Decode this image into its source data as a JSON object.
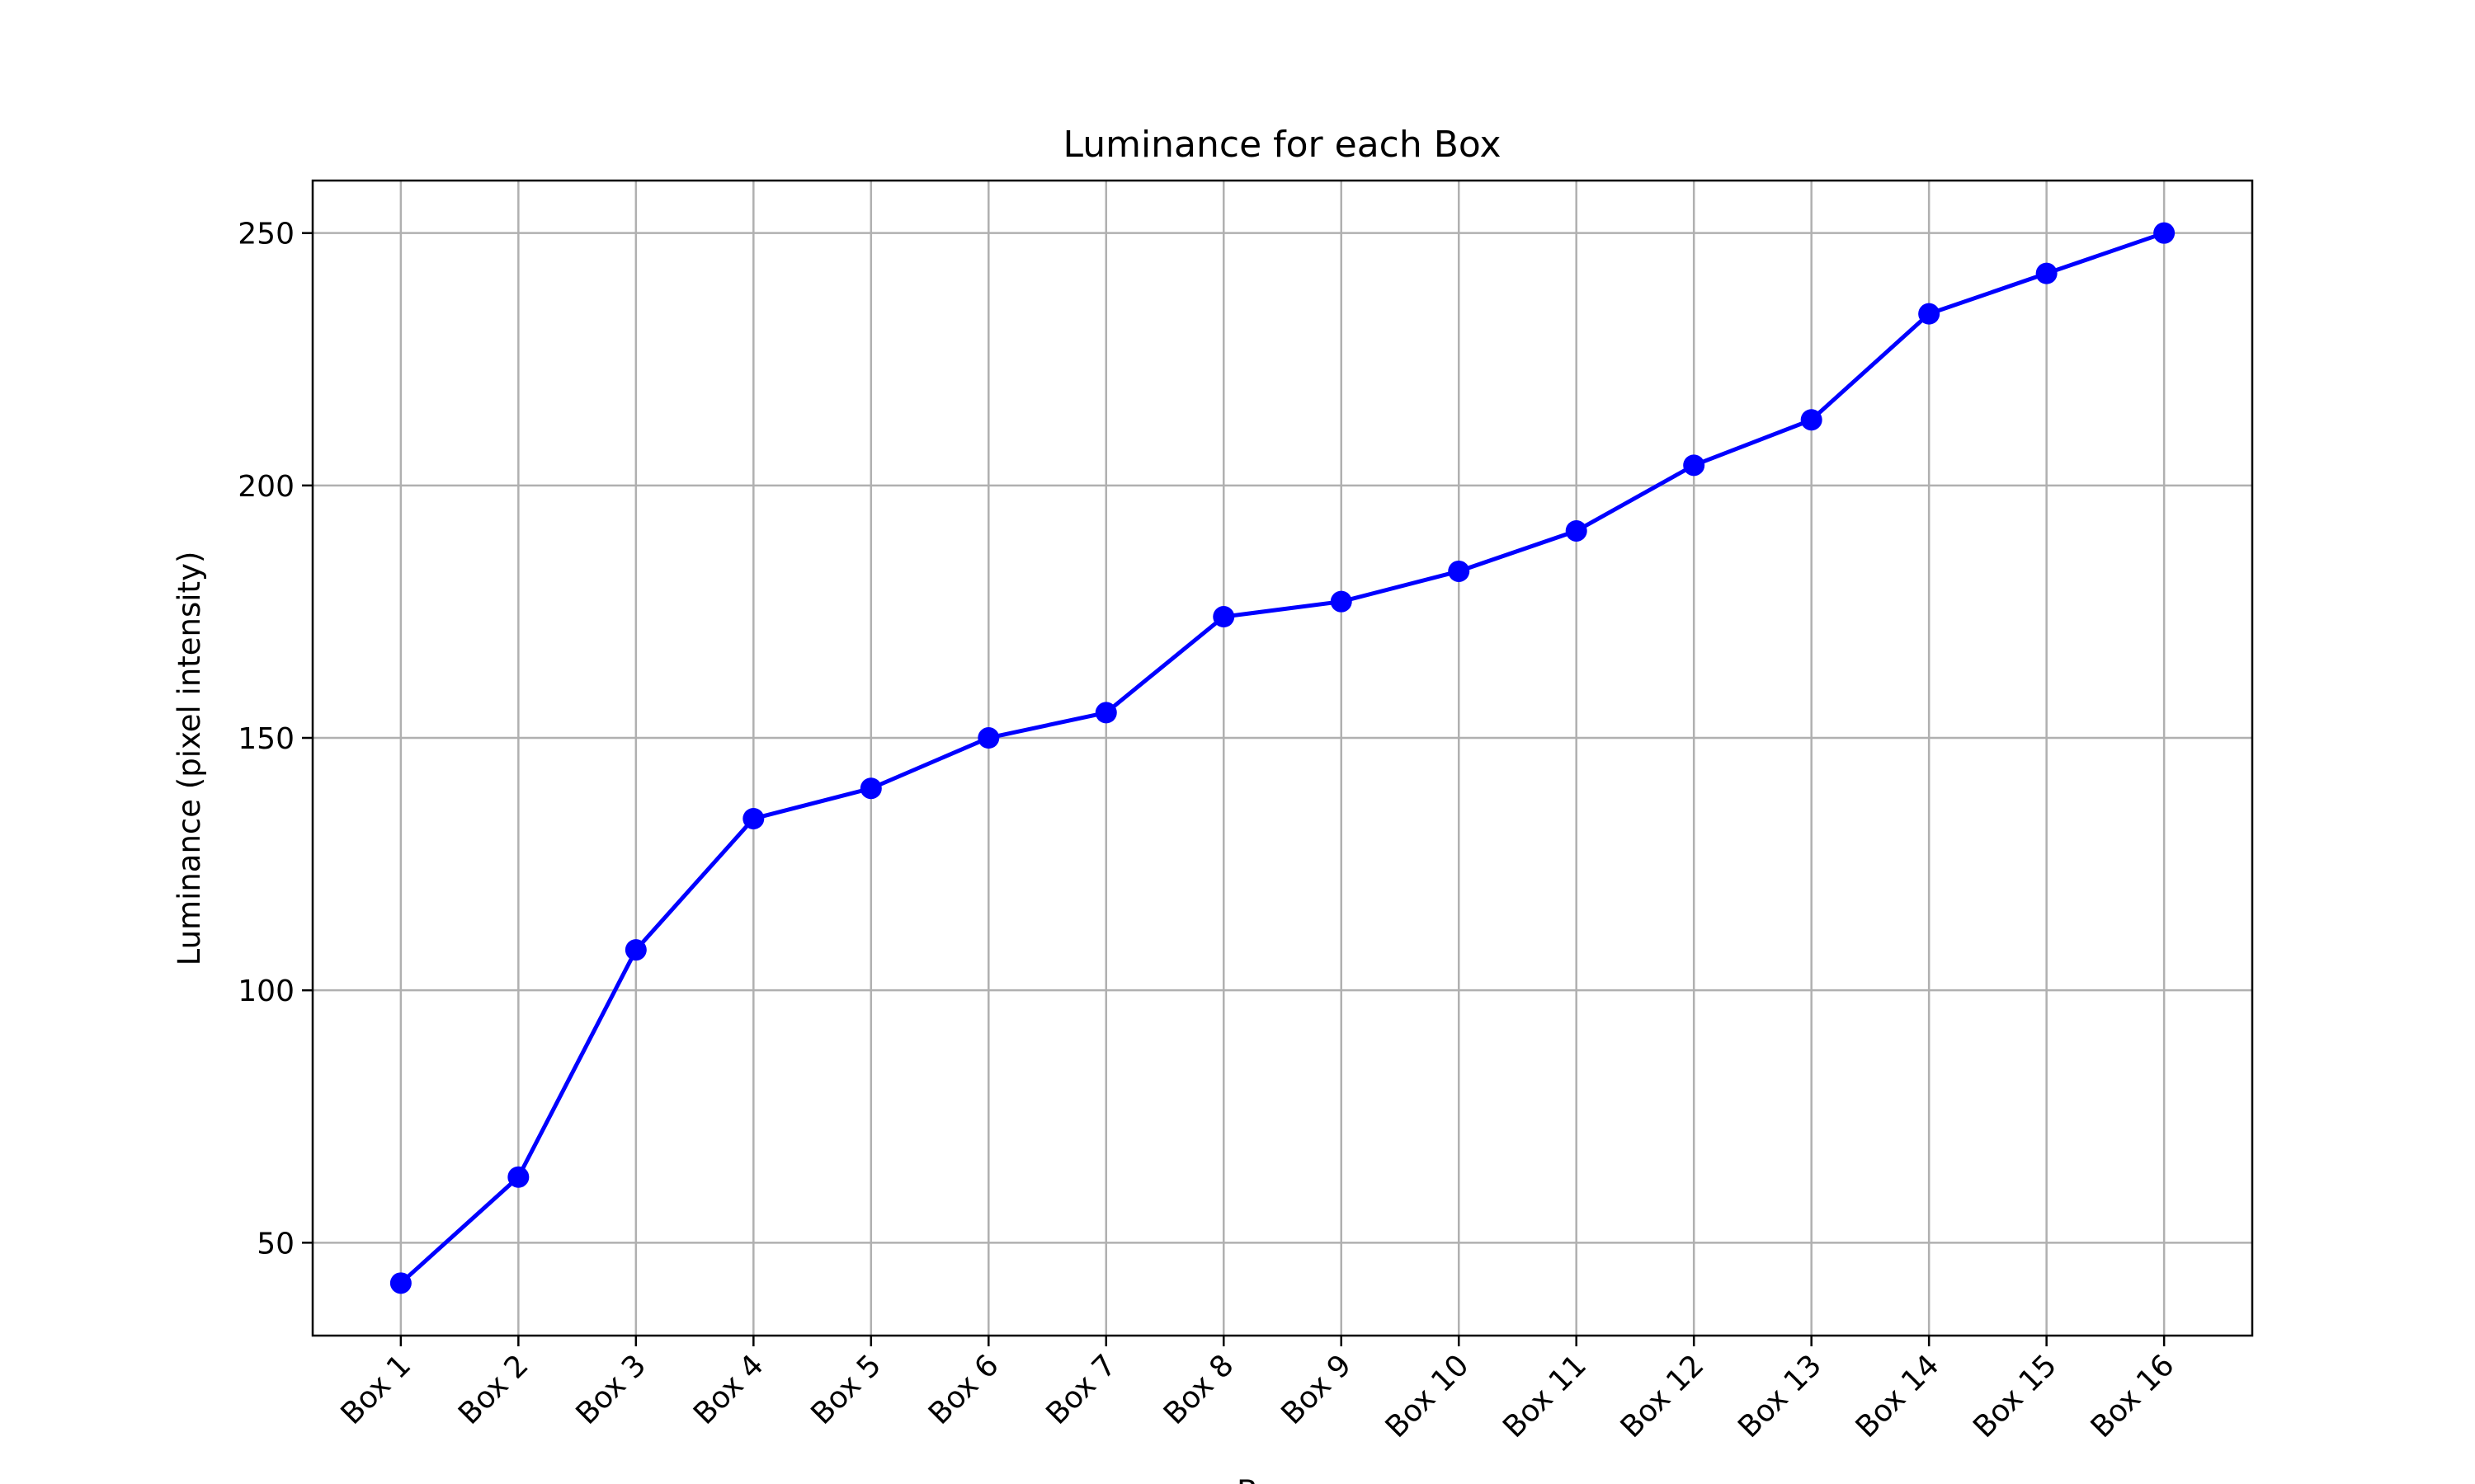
{
  "chart_data": {
    "type": "line",
    "title": "Luminance for each Box",
    "xlabel": "Boxes",
    "ylabel": "Luminance (pixel intensity)",
    "categories": [
      "Box 1",
      "Box 2",
      "Box 3",
      "Box 4",
      "Box 5",
      "Box 6",
      "Box 7",
      "Box 8",
      "Box 9",
      "Box 10",
      "Box 11",
      "Box 12",
      "Box 13",
      "Box 14",
      "Box 15",
      "Box 16"
    ],
    "series": [
      {
        "values": [
          42,
          63,
          108,
          134,
          140,
          150,
          155,
          174,
          177,
          183,
          191,
          204,
          213,
          234,
          242,
          250
        ],
        "color": "#0000ff",
        "marker": "circle"
      }
    ],
    "ylim": [
      31.6,
      260.4
    ],
    "yticks": [
      50,
      100,
      150,
      200,
      250
    ],
    "grid": true,
    "xtick_rotation": 45
  }
}
